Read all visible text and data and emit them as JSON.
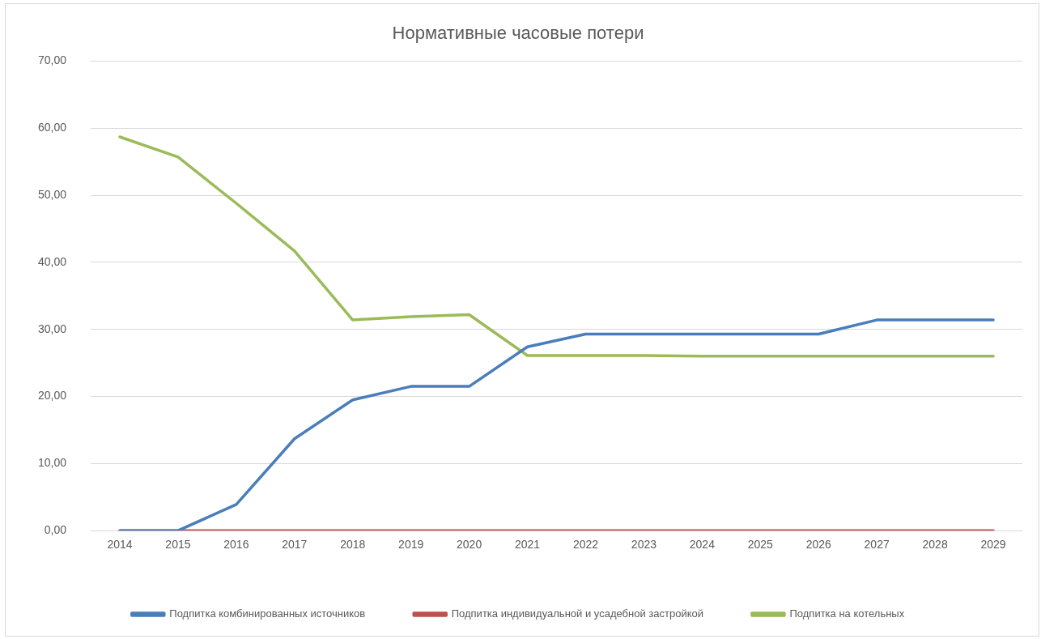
{
  "chart_data": {
    "type": "line",
    "title": "Нормативные часовые потери",
    "categories": [
      "2014",
      "2015",
      "2016",
      "2017",
      "2018",
      "2019",
      "2020",
      "2021",
      "2022",
      "2023",
      "2024",
      "2025",
      "2026",
      "2027",
      "2028",
      "2029"
    ],
    "series": [
      {
        "name": "Подпитка комбинированных источников",
        "color": "#4a7ebb",
        "values": [
          0,
          0,
          3.9,
          13.7,
          19.5,
          21.5,
          21.5,
          27.4,
          29.3,
          29.3,
          29.3,
          29.3,
          29.3,
          31.4,
          31.4,
          31.4
        ]
      },
      {
        "name": "Подпитка индивидуальной и усадебной застройкой",
        "color": "#c0504d",
        "values": [
          0,
          0,
          0,
          0,
          0,
          0,
          0,
          0,
          0,
          0,
          0,
          0,
          0,
          0,
          0,
          0
        ]
      },
      {
        "name": "Подпитка на котельных",
        "color": "#9bbb59",
        "values": [
          58.7,
          55.7,
          48.8,
          41.7,
          31.4,
          31.9,
          32.2,
          26.1,
          26.1,
          26.1,
          26.0,
          26.0,
          26.0,
          26.0,
          26.0,
          26.0
        ]
      }
    ],
    "ylim": [
      0,
      70
    ],
    "yticks": [
      {
        "value": 0,
        "label": "0,00"
      },
      {
        "value": 10,
        "label": "10,00"
      },
      {
        "value": 20,
        "label": "20,00"
      },
      {
        "value": 30,
        "label": "30,00"
      },
      {
        "value": 40,
        "label": "40,00"
      },
      {
        "value": 50,
        "label": "50,00"
      },
      {
        "value": 60,
        "label": "60,00"
      },
      {
        "value": 70,
        "label": "70,00"
      }
    ],
    "grid": "y",
    "legend": "bottom",
    "marker": "none",
    "line_style": "solid"
  }
}
